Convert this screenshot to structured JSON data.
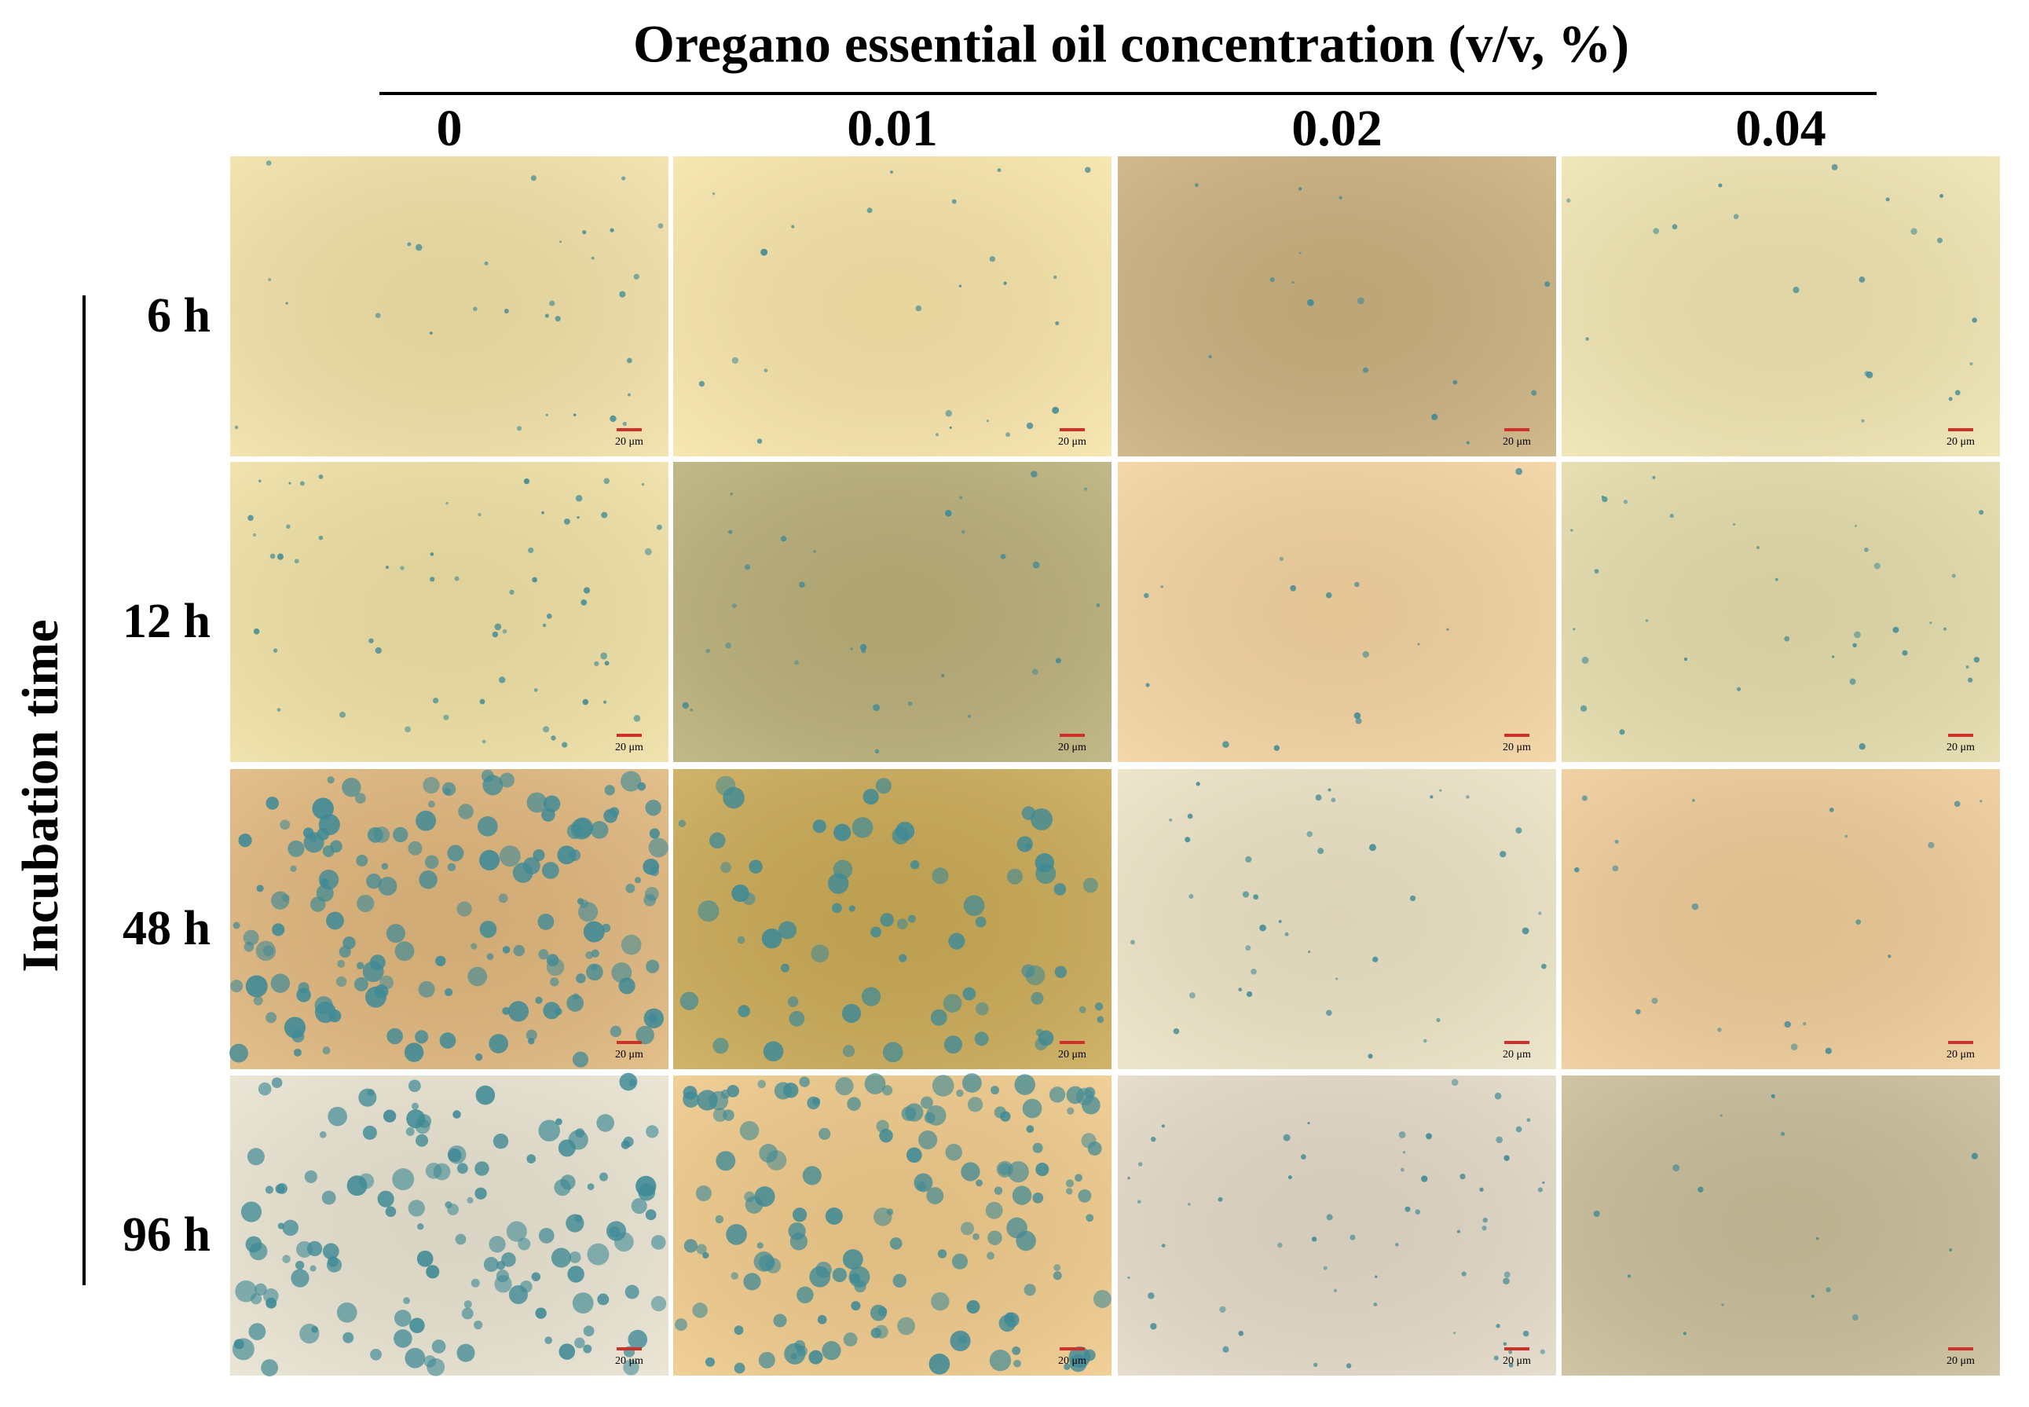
{
  "header": {
    "title": "Oregano essential oil concentration (v/v, %)"
  },
  "columns": [
    "0",
    "0.01",
    "0.02",
    "0.04"
  ],
  "row_axis_label": "Incubation time",
  "rows": [
    "6 h",
    "12 h",
    "48 h",
    "96 h"
  ],
  "scale_bar_label": "20 μm"
}
